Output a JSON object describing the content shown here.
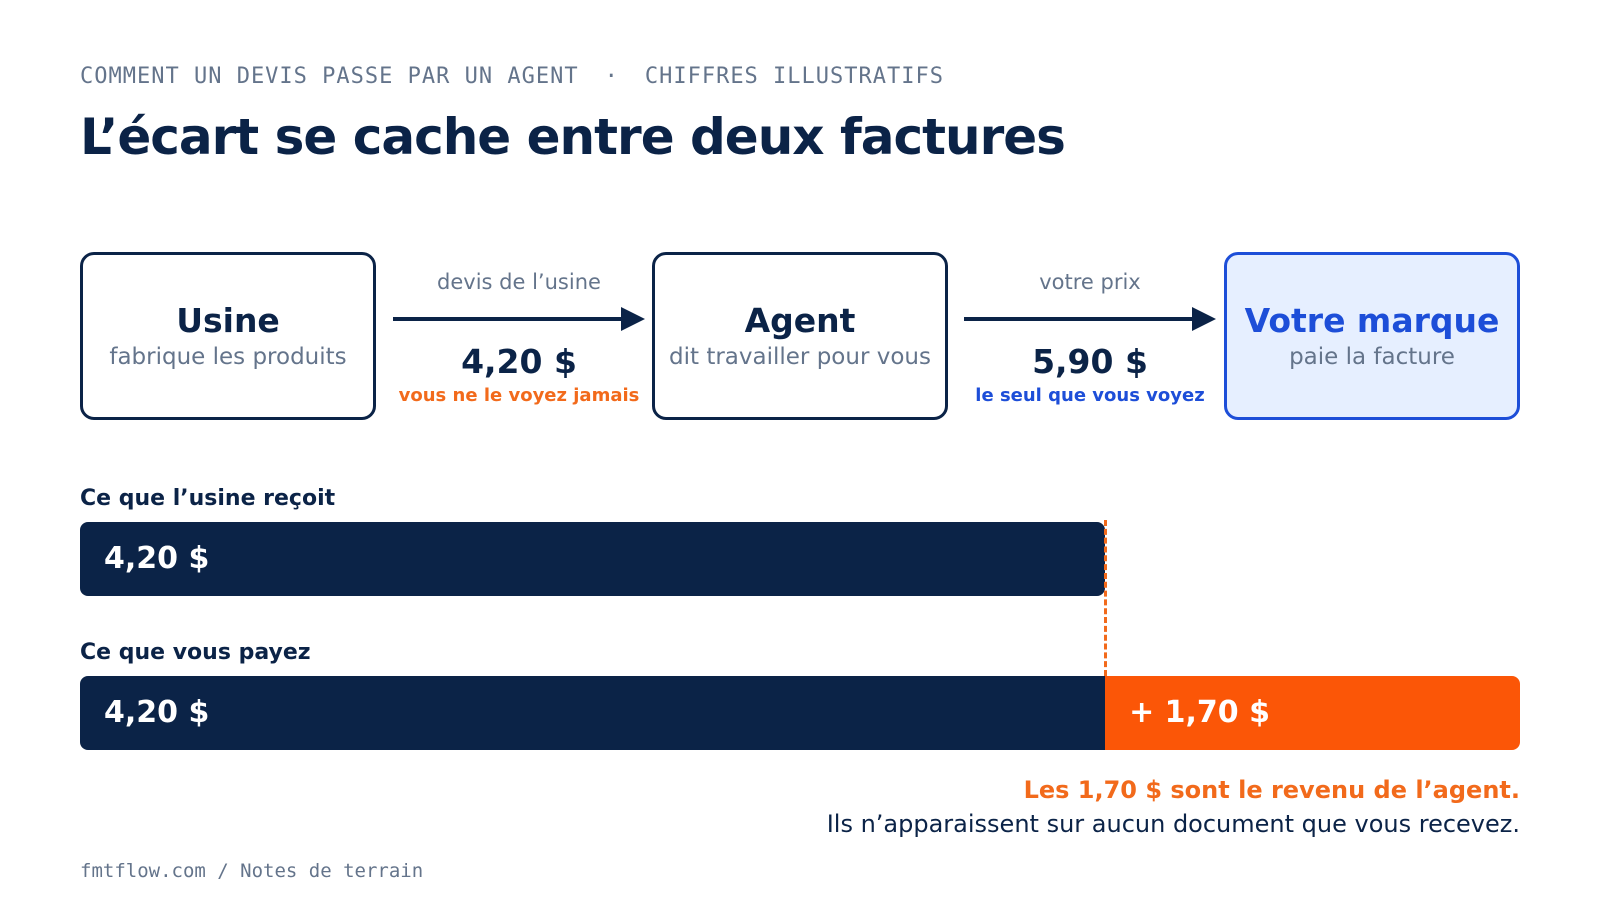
{
  "header": {
    "eyebrow_left": "COMMENT UN DEVIS PASSE PAR UN AGENT",
    "eyebrow_sep": "·",
    "eyebrow_right": "CHIFFRES ILLUSTRATIFS",
    "title": "L’écart se cache entre deux factures"
  },
  "flow": {
    "nodes": [
      {
        "name": "Usine",
        "sub": "fabrique les produits"
      },
      {
        "name": "Agent",
        "sub": "dit travailler pour vous"
      },
      {
        "name": "Votre marque",
        "sub": "paie la facture"
      }
    ],
    "links": [
      {
        "label": "devis de l’usine",
        "price": "4,20 $",
        "note": "vous ne le voyez jamais",
        "note_color": "#f26a1b"
      },
      {
        "label": "votre prix",
        "price": "5,90 $",
        "note": "le seul que vous voyez",
        "note_color": "#1d4ed8"
      }
    ]
  },
  "bars": {
    "factory_label": "Ce que l’usine reçoit",
    "factory_value": "4,20 $",
    "you_label": "Ce que vous payez",
    "you_value": "4,20 $",
    "markup_value": "+ 1,70 $"
  },
  "chart_data": {
    "type": "bar",
    "categories": [
      "Ce que l’usine reçoit",
      "Ce que vous payez"
    ],
    "series": [
      {
        "values": [
          4.2,
          4.2
        ]
      },
      {
        "values": [
          0,
          1.7
        ]
      }
    ],
    "stacked": true,
    "orientation": "horizontal",
    "unit": "$",
    "xlim": [
      0,
      5.9
    ]
  },
  "footer": {
    "highlight": "Les 1,70 $ sont le revenu de l’agent.",
    "text": "Ils n’apparaissent sur aucun document que vous recevez.",
    "credit": "fmtflow.com / Notes de terrain"
  },
  "colors": {
    "navy": "#0b2347",
    "orange": "#fb5607",
    "accent_orange": "#f26a1b",
    "blue": "#1d4ed8",
    "muted": "#64748b"
  }
}
